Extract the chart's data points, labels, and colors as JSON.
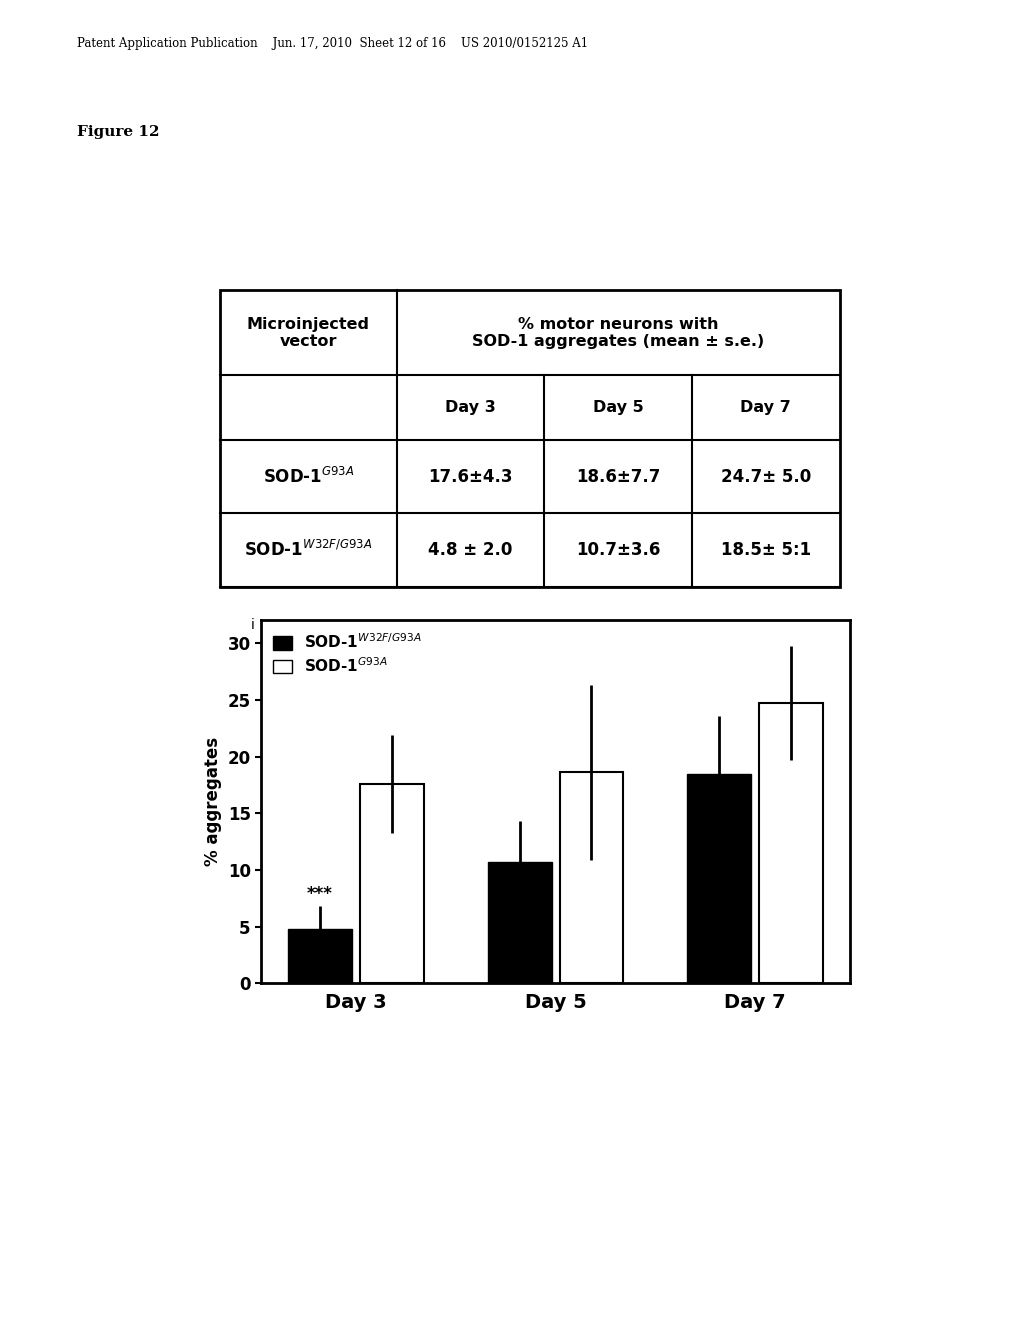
{
  "header_text": "Patent Application Publication    Jun. 17, 2010  Sheet 12 of 16    US 2010/0152125 A1",
  "figure_label": "Figure 12",
  "table": {
    "row1_label": "SOD-1$^{G93A}$",
    "row1_values": [
      "17.6±4.3",
      "18.6±7.7",
      "24.7± 5.0"
    ],
    "row2_label": "SOD-1$^{W32F/G93A}$",
    "row2_values": [
      "4.8 ± 2.0",
      "10.7±3.6",
      "18.5± 5:1"
    ],
    "header1": "Microinjected\nvector",
    "header2": "% motor neurons with\nSOD-1 aggregates (mean ± s.e.)",
    "subheaders": [
      "Day 3",
      "Day 5",
      "Day 7"
    ]
  },
  "bar_data": {
    "categories": [
      "Day 3",
      "Day 5",
      "Day 7"
    ],
    "black_values": [
      4.8,
      10.7,
      18.5
    ],
    "black_errors": [
      2.0,
      3.6,
      5.1
    ],
    "white_values": [
      17.6,
      18.6,
      24.7
    ],
    "white_errors": [
      4.3,
      7.7,
      5.0
    ],
    "ylabel": "% aggregates",
    "ylim": [
      0,
      32
    ],
    "yticks": [
      0,
      5,
      10,
      15,
      20,
      25,
      30
    ],
    "annotation": "***",
    "annotation_bar_idx": 0
  },
  "background_color": "#ffffff",
  "header_fontsize": 8.5,
  "figure_label_fontsize": 11
}
